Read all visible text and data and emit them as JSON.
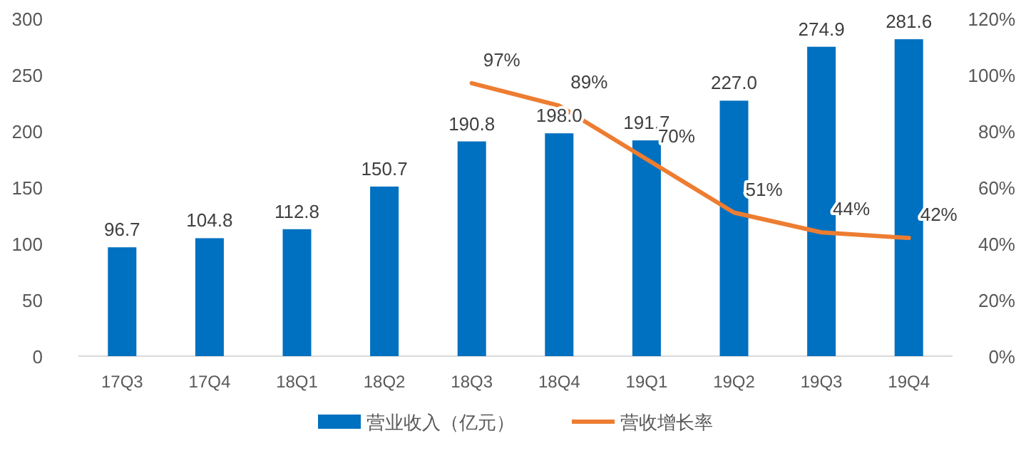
{
  "chart_data": {
    "type": "bar",
    "categories": [
      "17Q3",
      "17Q4",
      "18Q1",
      "18Q2",
      "18Q3",
      "18Q4",
      "19Q1",
      "19Q2",
      "19Q3",
      "19Q4"
    ],
    "series": [
      {
        "name": "营业收入（亿元）",
        "color": "#0070c0",
        "values": [
          96.7,
          104.8,
          112.8,
          150.7,
          190.8,
          198.0,
          191.7,
          227.0,
          274.9,
          281.6
        ],
        "value_labels": [
          "96.7",
          "104.8",
          "112.8",
          "150.7",
          "190.8",
          "198.0",
          "191.7",
          "227.0",
          "274.9",
          "281.6"
        ]
      },
      {
        "name": "营收增长率",
        "type": "line",
        "axis": "y2",
        "color": "#ed7d31",
        "values": [
          null,
          null,
          null,
          null,
          97,
          89,
          70,
          51,
          44,
          42
        ],
        "value_labels": [
          null,
          null,
          null,
          null,
          "97%",
          "89%",
          "70%",
          "51%",
          "44%",
          "42%"
        ]
      }
    ],
    "ylim": [
      0,
      300
    ],
    "yticks": [
      0,
      50,
      100,
      150,
      200,
      250,
      300
    ],
    "y2lim": [
      0,
      120
    ],
    "y2ticks": [
      {
        "value": 0,
        "label": "0%"
      },
      {
        "value": 20,
        "label": "20%"
      },
      {
        "value": 40,
        "label": "40%"
      },
      {
        "value": 60,
        "label": "60%"
      },
      {
        "value": 80,
        "label": "80%"
      },
      {
        "value": 100,
        "label": "100%"
      },
      {
        "value": 120,
        "label": "120%"
      }
    ],
    "legend": "bottom",
    "marker": "none",
    "line_style": "solid"
  }
}
